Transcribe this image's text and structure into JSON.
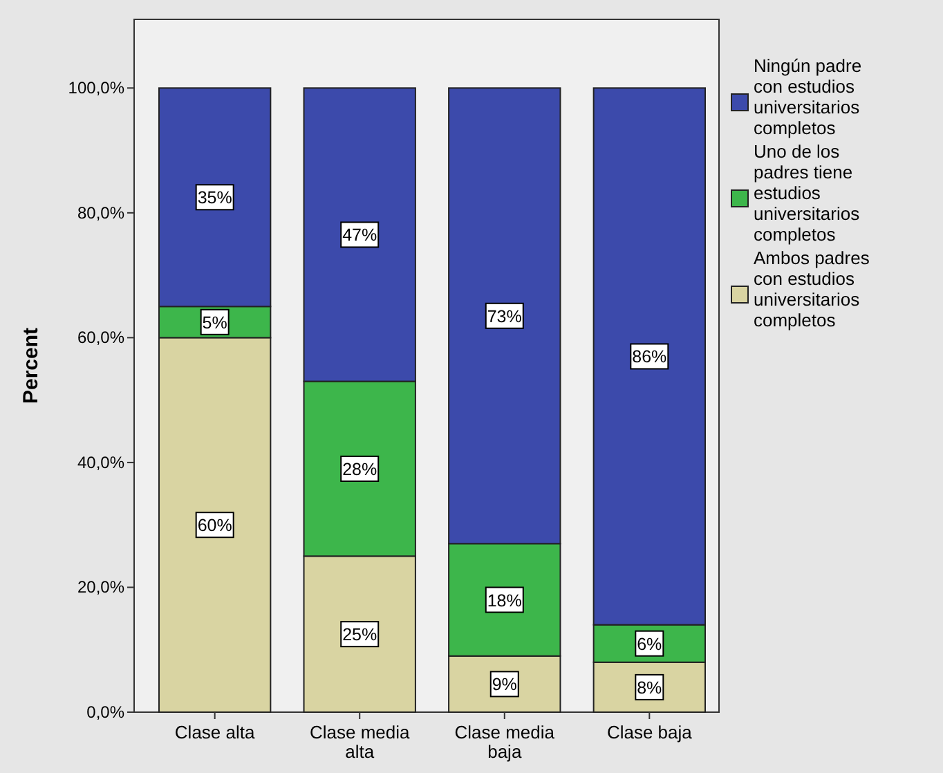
{
  "chart_data": {
    "type": "bar",
    "stacked": true,
    "ylabel": "Percent",
    "categories": [
      "Clase alta",
      "Clase media alta",
      "Clase media baja",
      "Clase baja"
    ],
    "ylim": [
      0,
      111
    ],
    "yticks": [
      {
        "value": 0,
        "label": "0,0%"
      },
      {
        "value": 20,
        "label": "20,0%"
      },
      {
        "value": 40,
        "label": "40,0%"
      },
      {
        "value": 60,
        "label": "60,0%"
      },
      {
        "value": 80,
        "label": "80,0%"
      },
      {
        "value": 100,
        "label": "100,0%"
      }
    ],
    "legend": "right",
    "series": [
      {
        "name": "Ambos padres con estudios universitarios completos",
        "color": "#d9d4a2",
        "values": [
          60,
          25,
          9,
          8
        ],
        "value_labels": [
          "60%",
          "25%",
          "9%",
          "8%"
        ]
      },
      {
        "name": "Uno de los padres tiene estudios universitarios completos",
        "color": "#3db64b",
        "values": [
          5,
          28,
          18,
          6
        ],
        "value_labels": [
          "5%",
          "28%",
          "18%",
          "6%"
        ]
      },
      {
        "name": "Ningún padre con estudios universitarios completos",
        "color": "#3c4aab",
        "values": [
          35,
          47,
          73,
          86
        ],
        "value_labels": [
          "35%",
          "47%",
          "73%",
          "86%"
        ]
      }
    ]
  }
}
